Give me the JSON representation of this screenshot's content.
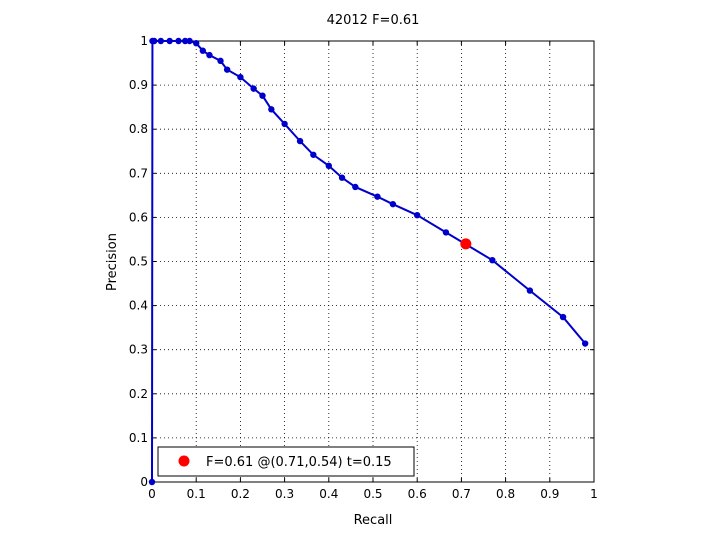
{
  "chart_data": {
    "type": "line",
    "title": "42012 F=0.61",
    "xlabel": "Recall",
    "ylabel": "Precision",
    "xlim": [
      0,
      1
    ],
    "ylim": [
      0,
      1
    ],
    "grid": true,
    "x_ticks": [
      "0",
      "0.1",
      "0.2",
      "0.3",
      "0.4",
      "0.5",
      "0.6",
      "0.7",
      "0.8",
      "0.9",
      "1"
    ],
    "y_ticks": [
      "0",
      "0.1",
      "0.2",
      "0.3",
      "0.4",
      "0.5",
      "0.6",
      "0.7",
      "0.8",
      "0.9",
      "1"
    ],
    "series": [
      {
        "color": "#0000cc",
        "points": [
          [
            0,
            0
          ],
          [
            0.001,
            1.0
          ],
          [
            0.005,
            1.0
          ],
          [
            0.02,
            1.0
          ],
          [
            0.04,
            1.0
          ],
          [
            0.06,
            1.0
          ],
          [
            0.075,
            1.0
          ],
          [
            0.085,
            1.0
          ],
          [
            0.1,
            0.995
          ],
          [
            0.115,
            0.978
          ],
          [
            0.13,
            0.968
          ],
          [
            0.155,
            0.955
          ],
          [
            0.17,
            0.935
          ],
          [
            0.2,
            0.918
          ],
          [
            0.23,
            0.892
          ],
          [
            0.25,
            0.876
          ],
          [
            0.27,
            0.845
          ],
          [
            0.3,
            0.812
          ],
          [
            0.335,
            0.773
          ],
          [
            0.365,
            0.742
          ],
          [
            0.4,
            0.717
          ],
          [
            0.43,
            0.69
          ],
          [
            0.46,
            0.669
          ],
          [
            0.51,
            0.647
          ],
          [
            0.545,
            0.63
          ],
          [
            0.6,
            0.605
          ],
          [
            0.665,
            0.566
          ],
          [
            0.77,
            0.503
          ],
          [
            0.855,
            0.434
          ],
          [
            0.93,
            0.374
          ],
          [
            0.98,
            0.314
          ]
        ]
      }
    ],
    "highlight_point": {
      "x": 0.71,
      "y": 0.54,
      "color": "#ff0000"
    },
    "legend": {
      "position": "bottom-left",
      "entries": [
        {
          "label": "F=0.61 @(0.71,0.54) t=0.15",
          "color": "#ff0000"
        }
      ]
    }
  }
}
